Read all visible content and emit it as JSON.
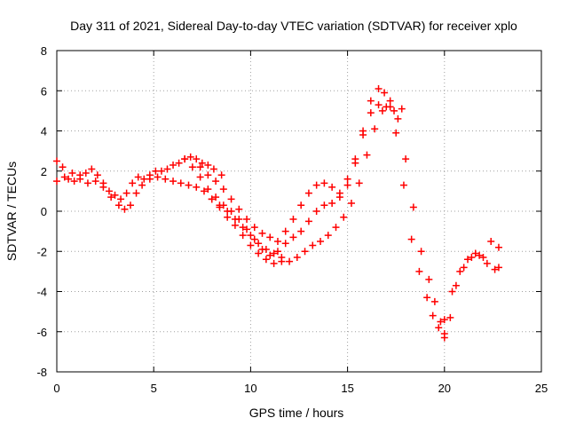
{
  "chart_data": {
    "type": "scatter",
    "title": "Day 311 of 2021, Sidereal Day-to-day VTEC variation (SDTVAR) for receiver xplo",
    "xlabel": "GPS time / hours",
    "ylabel": "SDTVAR / TECUs",
    "xlim": [
      0,
      25
    ],
    "ylim": [
      -8,
      8
    ],
    "xticks": [
      0,
      5,
      10,
      15,
      20,
      25
    ],
    "yticks": [
      -8,
      -6,
      -4,
      -2,
      0,
      2,
      4,
      6,
      8
    ],
    "grid": true,
    "marker": "plus",
    "color": "#ff0000",
    "series": [
      {
        "x": [
          0.0,
          0.3,
          0.6,
          0.9,
          1.2,
          1.5,
          1.8,
          2.1,
          2.4,
          2.7,
          3.0,
          3.3,
          3.6,
          3.9,
          4.2,
          4.5,
          4.8,
          5.1,
          5.4,
          5.7,
          6.0,
          6.3,
          6.6,
          6.9,
          7.2,
          7.5,
          7.8,
          8.1,
          8.5
        ],
        "y": [
          2.5,
          2.2,
          1.6,
          1.5,
          1.8,
          1.9,
          2.1,
          1.8,
          1.4,
          1.0,
          0.8,
          0.6,
          0.9,
          1.4,
          1.7,
          1.6,
          1.8,
          2.0,
          2.0,
          2.1,
          2.3,
          2.4,
          2.6,
          2.7,
          2.6,
          2.4,
          2.3,
          2.1,
          1.8
        ]
      },
      {
        "x": [
          0.0,
          0.4,
          0.8,
          1.2,
          1.6,
          2.0,
          2.4,
          2.8,
          3.2,
          3.5,
          3.8,
          4.1,
          4.4,
          4.8,
          5.2,
          5.6,
          6.0,
          6.4,
          6.8,
          7.2,
          7.6,
          8.0,
          8.4,
          8.8,
          9.2,
          9.6,
          10.0,
          10.4,
          10.8,
          11.2,
          11.6,
          12.0,
          12.4,
          12.8,
          13.2,
          13.6,
          14.0,
          14.4,
          14.8,
          15.2,
          15.6,
          16.0,
          16.4,
          16.8,
          17.2,
          17.6,
          18.0,
          18.4,
          18.8,
          19.2,
          19.5,
          19.8,
          20.0,
          20.3,
          20.6,
          21.0,
          21.4,
          21.8,
          22.2,
          22.6,
          22.8
        ],
        "y": [
          1.5,
          1.7,
          1.9,
          1.6,
          1.4,
          1.5,
          1.2,
          0.7,
          0.3,
          0.1,
          0.3,
          0.9,
          1.3,
          1.6,
          1.7,
          1.6,
          1.5,
          1.4,
          1.3,
          1.2,
          1.0,
          0.6,
          0.3,
          0.0,
          -0.4,
          -0.8,
          -1.2,
          -1.6,
          -1.9,
          -2.1,
          -2.3,
          -2.5,
          -2.3,
          -2.0,
          -1.7,
          -1.5,
          -1.2,
          -0.8,
          -0.3,
          0.4,
          1.4,
          2.8,
          4.1,
          5.0,
          5.5,
          4.6,
          2.6,
          0.2,
          -2.0,
          -3.4,
          -4.5,
          -5.5,
          -6.1,
          -5.3,
          -3.7,
          -2.8,
          -2.3,
          -2.2,
          -2.6,
          -2.9,
          -2.8
        ]
      },
      {
        "x": [
          6.6,
          7.0,
          7.4,
          7.8,
          8.2,
          8.6,
          9.0,
          9.4,
          9.8,
          10.2,
          10.6,
          11.0,
          11.4,
          11.8,
          12.2,
          12.6,
          13.0,
          13.4,
          13.8,
          14.2,
          14.6,
          15.0,
          15.4,
          15.8,
          16.2,
          16.6,
          17.0,
          17.4,
          17.8
        ],
        "y": [
          2.6,
          2.2,
          1.7,
          1.1,
          0.7,
          0.3,
          0.0,
          -0.4,
          -0.9,
          -1.4,
          -1.9,
          -2.2,
          -2.0,
          -1.6,
          -1.3,
          -1.0,
          -0.5,
          0.0,
          0.3,
          0.4,
          0.7,
          1.3,
          2.4,
          3.8,
          4.9,
          5.3,
          5.2,
          5.0,
          5.1
        ]
      },
      {
        "x": [
          7.4,
          7.8,
          8.2,
          8.6,
          9.0,
          9.4,
          9.8,
          10.2,
          10.6,
          11.0,
          11.4,
          11.8,
          12.2,
          12.6,
          13.0,
          13.4,
          13.8,
          14.2,
          14.6,
          15.0,
          15.4,
          15.8,
          16.2,
          16.6,
          16.9,
          17.2,
          17.5,
          17.9,
          18.3,
          18.7,
          19.1,
          19.4,
          19.7,
          20.0
        ],
        "y": [
          2.2,
          1.8,
          1.5,
          1.1,
          0.6,
          0.1,
          -0.4,
          -0.8,
          -1.1,
          -1.3,
          -1.5,
          -1.0,
          -0.4,
          0.3,
          0.9,
          1.3,
          1.4,
          1.2,
          0.9,
          1.6,
          2.6,
          4.0,
          5.5,
          6.1,
          5.9,
          5.2,
          3.9,
          1.3,
          -1.4,
          -3.0,
          -4.3,
          -5.2,
          -5.8,
          -6.3
        ]
      },
      {
        "x": [
          8.0,
          8.4,
          8.8,
          9.2,
          9.6,
          10.0,
          10.4,
          10.8,
          11.2,
          11.6
        ],
        "y": [
          0.6,
          0.2,
          -0.3,
          -0.7,
          -1.2,
          -1.7,
          -2.1,
          -2.4,
          -2.6,
          -2.5
        ]
      },
      {
        "x": [
          20.0,
          20.4,
          20.8,
          21.2,
          21.6,
          22.0,
          22.4,
          22.8
        ],
        "y": [
          -5.4,
          -4.0,
          -3.0,
          -2.4,
          -2.1,
          -2.3,
          -1.5,
          -1.8
        ]
      }
    ]
  }
}
